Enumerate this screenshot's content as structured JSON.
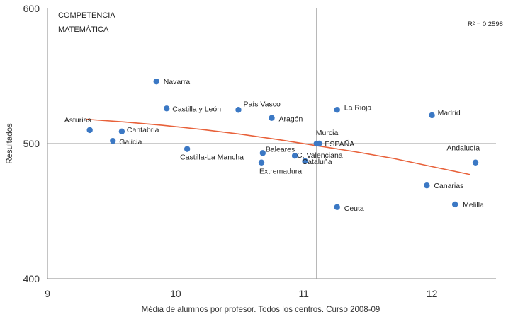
{
  "chart_data": {
    "type": "scatter",
    "title": "COMPETENCIA MATEMÁTICA",
    "title_lines": [
      "COMPETENCIA",
      "MATEMÁTICA"
    ],
    "xlabel": "Média de alumnos  por profesor. Todos los centros. Curso 2008-09",
    "ylabel": "Resultados",
    "xlim": [
      9,
      12.5
    ],
    "ylim": [
      400,
      600
    ],
    "x_ticks": [
      9,
      10,
      11,
      12
    ],
    "y_ticks": [
      400,
      500,
      600
    ],
    "x_tick_labels": [
      "9",
      "10",
      "11",
      "12"
    ],
    "y_tick_labels": [
      "400",
      "500",
      "600"
    ],
    "reference_lines": {
      "x": 11.1,
      "y": 500
    },
    "r2_label": "R² = 0,2598",
    "point_color": "#3b78c4",
    "trend_color": "#e8613a",
    "trendline": {
      "x": [
        9.3,
        9.6,
        9.9,
        10.2,
        10.5,
        10.8,
        11.1,
        11.4,
        11.7,
        12.0,
        12.3
      ],
      "y": [
        518,
        516,
        513.5,
        510.5,
        507,
        503,
        498.5,
        494,
        489,
        483,
        477
      ]
    },
    "points": [
      {
        "label": "Navarra",
        "x": 9.85,
        "y": 546
      },
      {
        "label": "Castilla y León",
        "x": 9.93,
        "y": 526
      },
      {
        "label": "País Vasco",
        "x": 10.49,
        "y": 525
      },
      {
        "label": "Aragón",
        "x": 10.75,
        "y": 519
      },
      {
        "label": "La Rioja",
        "x": 11.26,
        "y": 525
      },
      {
        "label": "Madrid",
        "x": 12.0,
        "y": 521
      },
      {
        "label": "Asturias",
        "x": 9.33,
        "y": 510
      },
      {
        "label": "Cantabria",
        "x": 9.58,
        "y": 509
      },
      {
        "label": "Galicia",
        "x": 9.51,
        "y": 502
      },
      {
        "label": "Castilla-La Mancha",
        "x": 10.09,
        "y": 496
      },
      {
        "label": "Baleares",
        "x": 10.68,
        "y": 493
      },
      {
        "label": "Extremadura",
        "x": 10.67,
        "y": 486
      },
      {
        "label": "C. Valenciana",
        "x": 10.93,
        "y": 491
      },
      {
        "label": "Cataluña",
        "x": 11.01,
        "y": 487
      },
      {
        "label": "Murcia",
        "x": 11.1,
        "y": 500
      },
      {
        "label": "ESPAÑA",
        "x": 11.12,
        "y": 500
      },
      {
        "label": "Andalucía",
        "x": 12.34,
        "y": 486
      },
      {
        "label": "Canarias",
        "x": 11.96,
        "y": 469
      },
      {
        "label": "Melilla",
        "x": 12.18,
        "y": 455
      },
      {
        "label": "Ceuta",
        "x": 11.26,
        "y": 453
      }
    ]
  }
}
